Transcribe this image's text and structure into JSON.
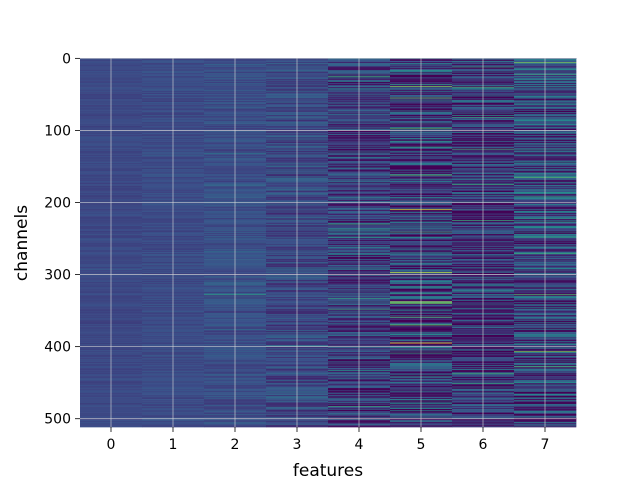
{
  "chart_data": {
    "type": "heatmap",
    "xlabel": "features",
    "ylabel": "channels",
    "x_ticks": [
      "0",
      "1",
      "2",
      "3",
      "4",
      "5",
      "6",
      "7"
    ],
    "y_ticks": [
      "0",
      "100",
      "200",
      "300",
      "400",
      "500"
    ],
    "x_tick_values": [
      0,
      1,
      2,
      3,
      4,
      5,
      6,
      7
    ],
    "y_tick_values": [
      0,
      100,
      200,
      300,
      400,
      500
    ],
    "xlim": [
      -0.5,
      7.5
    ],
    "ylim": [
      511.5,
      -0.5
    ],
    "n_features": 8,
    "n_channels": 512,
    "colormap": "viridis",
    "grid": true,
    "grid_color": "#d8d8d8",
    "column_variation": [
      0.015,
      0.02,
      0.03,
      0.05,
      0.09,
      0.13,
      0.11,
      0.12
    ],
    "column_base": [
      0.22,
      0.23,
      0.24,
      0.22,
      0.18,
      0.16,
      0.15,
      0.2
    ],
    "highlights": [
      {
        "feature": 5,
        "channel": 210,
        "value": 0.95
      },
      {
        "feature": 5,
        "channel": 297,
        "value": 0.9
      },
      {
        "feature": 5,
        "channel": 338,
        "value": 0.93
      },
      {
        "feature": 5,
        "channel": 395,
        "value": 1.0
      },
      {
        "feature": 5,
        "channel": 55,
        "value": 0.75
      },
      {
        "feature": 7,
        "channel": 6,
        "value": 0.8
      },
      {
        "feature": 7,
        "channel": 165,
        "value": 0.7
      },
      {
        "feature": 7,
        "channel": 328,
        "value": 0.72
      },
      {
        "feature": 6,
        "channel": 40,
        "value": 0.65
      },
      {
        "feature": 4,
        "channel": 230,
        "value": 0.6
      },
      {
        "feature": 2,
        "channel": 328,
        "value": 0.55
      },
      {
        "feature": 6,
        "channel": 437,
        "value": 0.62
      }
    ]
  }
}
